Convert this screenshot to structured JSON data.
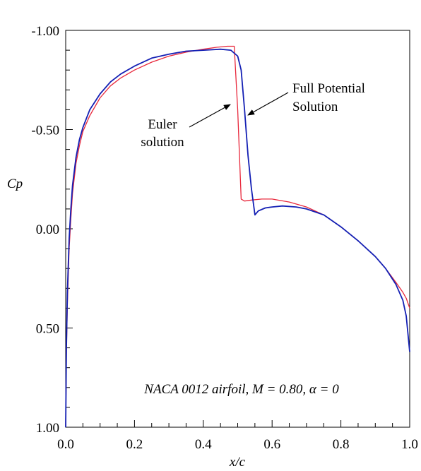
{
  "chart_data": {
    "type": "line",
    "title": "",
    "xlabel": "x/c",
    "ylabel": "Cp",
    "xlim": [
      0.0,
      1.0
    ],
    "ylim": [
      1.0,
      -1.0
    ],
    "y_inverted": true,
    "grid": false,
    "x_ticks": [
      {
        "value": 0.0,
        "label": "0.0"
      },
      {
        "value": 0.2,
        "label": "0.2"
      },
      {
        "value": 0.4,
        "label": "0.4"
      },
      {
        "value": 0.6,
        "label": "0.6"
      },
      {
        "value": 0.8,
        "label": "0.8"
      },
      {
        "value": 1.0,
        "label": "1.0"
      }
    ],
    "y_ticks": [
      {
        "value": -1.0,
        "label": "-1.00"
      },
      {
        "value": -0.5,
        "label": "-0.50"
      },
      {
        "value": 0.0,
        "label": "0.00"
      },
      {
        "value": 0.5,
        "label": "0.50"
      },
      {
        "value": 1.0,
        "label": "1.00"
      }
    ],
    "series": [
      {
        "name": "Euler solution",
        "color": "#e8283c",
        "points": [
          [
            0.0,
            1.0
          ],
          [
            0.002,
            0.62
          ],
          [
            0.005,
            0.38
          ],
          [
            0.01,
            0.1
          ],
          [
            0.015,
            -0.05
          ],
          [
            0.02,
            -0.18
          ],
          [
            0.03,
            -0.33
          ],
          [
            0.04,
            -0.42
          ],
          [
            0.05,
            -0.49
          ],
          [
            0.07,
            -0.57
          ],
          [
            0.1,
            -0.66
          ],
          [
            0.13,
            -0.72
          ],
          [
            0.16,
            -0.76
          ],
          [
            0.2,
            -0.8
          ],
          [
            0.25,
            -0.84
          ],
          [
            0.3,
            -0.87
          ],
          [
            0.35,
            -0.89
          ],
          [
            0.4,
            -0.905
          ],
          [
            0.44,
            -0.915
          ],
          [
            0.47,
            -0.92
          ],
          [
            0.49,
            -0.92
          ],
          [
            0.5,
            -0.6
          ],
          [
            0.51,
            -0.15
          ],
          [
            0.52,
            -0.14
          ],
          [
            0.54,
            -0.145
          ],
          [
            0.57,
            -0.15
          ],
          [
            0.6,
            -0.15
          ],
          [
            0.65,
            -0.135
          ],
          [
            0.7,
            -0.11
          ],
          [
            0.75,
            -0.07
          ],
          [
            0.8,
            -0.01
          ],
          [
            0.85,
            0.06
          ],
          [
            0.9,
            0.14
          ],
          [
            0.93,
            0.2
          ],
          [
            0.96,
            0.27
          ],
          [
            0.98,
            0.32
          ],
          [
            0.99,
            0.35
          ],
          [
            1.0,
            0.4
          ]
        ]
      },
      {
        "name": "Full Potential Solution",
        "color": "#1420b4",
        "points": [
          [
            0.0,
            1.0
          ],
          [
            0.002,
            0.6
          ],
          [
            0.005,
            0.32
          ],
          [
            0.01,
            0.05
          ],
          [
            0.015,
            -0.1
          ],
          [
            0.02,
            -0.22
          ],
          [
            0.03,
            -0.36
          ],
          [
            0.04,
            -0.45
          ],
          [
            0.05,
            -0.51
          ],
          [
            0.07,
            -0.6
          ],
          [
            0.1,
            -0.68
          ],
          [
            0.13,
            -0.74
          ],
          [
            0.16,
            -0.78
          ],
          [
            0.2,
            -0.82
          ],
          [
            0.25,
            -0.86
          ],
          [
            0.3,
            -0.88
          ],
          [
            0.35,
            -0.895
          ],
          [
            0.4,
            -0.9
          ],
          [
            0.45,
            -0.905
          ],
          [
            0.48,
            -0.9
          ],
          [
            0.5,
            -0.87
          ],
          [
            0.51,
            -0.8
          ],
          [
            0.52,
            -0.6
          ],
          [
            0.53,
            -0.37
          ],
          [
            0.54,
            -0.2
          ],
          [
            0.55,
            -0.07
          ],
          [
            0.56,
            -0.09
          ],
          [
            0.58,
            -0.105
          ],
          [
            0.6,
            -0.11
          ],
          [
            0.63,
            -0.115
          ],
          [
            0.67,
            -0.11
          ],
          [
            0.7,
            -0.1
          ],
          [
            0.75,
            -0.07
          ],
          [
            0.8,
            -0.01
          ],
          [
            0.85,
            0.06
          ],
          [
            0.9,
            0.14
          ],
          [
            0.93,
            0.2
          ],
          [
            0.96,
            0.28
          ],
          [
            0.98,
            0.36
          ],
          [
            0.99,
            0.44
          ],
          [
            1.0,
            0.62
          ]
        ]
      }
    ],
    "annotations": [
      {
        "id": "euler",
        "lines": [
          "Euler",
          "solution"
        ],
        "arrow_tip": [
          0.48,
          -0.63
        ]
      },
      {
        "id": "fullpot",
        "lines": [
          "Full Potential",
          "Solution"
        ],
        "arrow_tip": [
          0.535,
          -0.57
        ]
      }
    ],
    "note": "NACA 0012 airfoil, M = 0.80,   α = 0"
  }
}
